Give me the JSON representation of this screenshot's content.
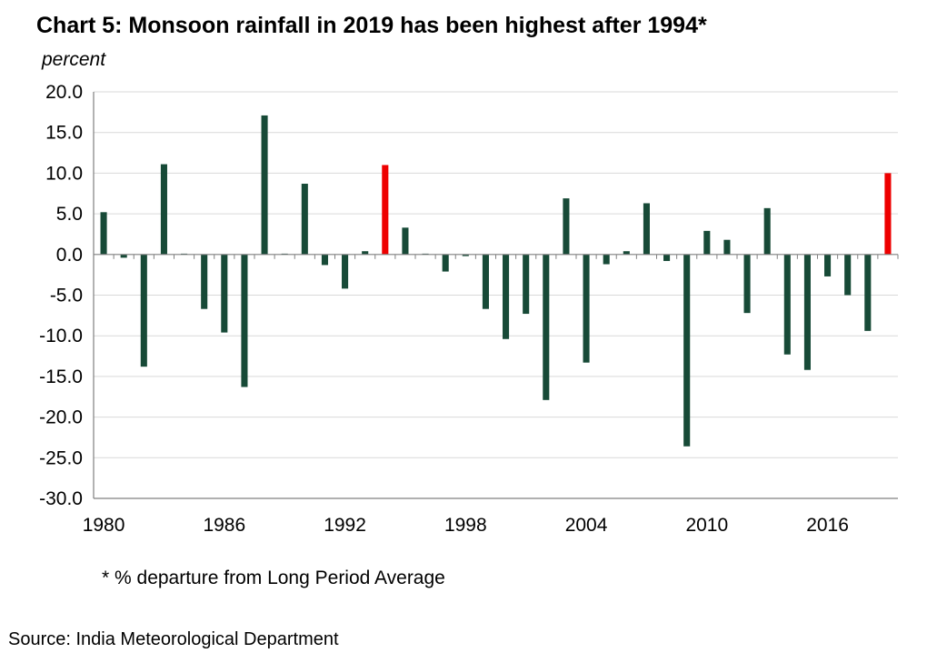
{
  "title": "Chart 5: Monsoon rainfall in 2019 has been highest after 1994*",
  "unit_label": "percent",
  "footnote": "* % departure from Long Period Average",
  "source": "Source: India Meteorological Department",
  "colors": {
    "bar": "#174a37",
    "highlight": "#ee0000",
    "grid": "#d9d9d9",
    "axis": "#808080"
  },
  "chart_data": {
    "type": "bar",
    "title": "Chart 5: Monsoon rainfall in 2019 has been highest after 1994*",
    "ylabel": "percent",
    "xlabel": "",
    "ylim": [
      -30,
      20
    ],
    "yticks": [
      20,
      15,
      10,
      5,
      0,
      -5,
      -10,
      -15,
      -20,
      -25,
      -30
    ],
    "ytick_labels": [
      "20.0",
      "15.0",
      "10.0",
      "5.0",
      "0.0",
      "-5.0",
      "-10.0",
      "-15.0",
      "-20.0",
      "-25.0",
      "-30.0"
    ],
    "xtick_labels": [
      "1980",
      "1986",
      "1992",
      "1998",
      "2004",
      "2010",
      "2016"
    ],
    "grid": true,
    "highlighted": [
      "1994",
      "2019"
    ],
    "categories": [
      "1980",
      "1981",
      "1982",
      "1983",
      "1984",
      "1985",
      "1986",
      "1987",
      "1988",
      "1989",
      "1990",
      "1991",
      "1992",
      "1993",
      "1994",
      "1995",
      "1996",
      "1997",
      "1998",
      "1999",
      "2000",
      "2001",
      "2002",
      "2003",
      "2004",
      "2005",
      "2006",
      "2007",
      "2008",
      "2009",
      "2010",
      "2011",
      "2012",
      "2013",
      "2014",
      "2015",
      "2016",
      "2017",
      "2018",
      "2019"
    ],
    "values": [
      5.2,
      -0.4,
      -13.8,
      11.1,
      0.1,
      -6.7,
      -9.6,
      -16.3,
      17.1,
      0.1,
      8.7,
      -1.3,
      -4.2,
      0.4,
      11.0,
      3.3,
      0.1,
      -2.1,
      -0.2,
      -6.7,
      -10.4,
      -7.3,
      -17.9,
      6.9,
      -13.3,
      -1.2,
      0.4,
      6.3,
      -0.8,
      -23.6,
      2.9,
      1.8,
      -7.2,
      5.7,
      -12.3,
      -14.2,
      -2.7,
      -5.0,
      -9.4,
      10.0
    ]
  }
}
